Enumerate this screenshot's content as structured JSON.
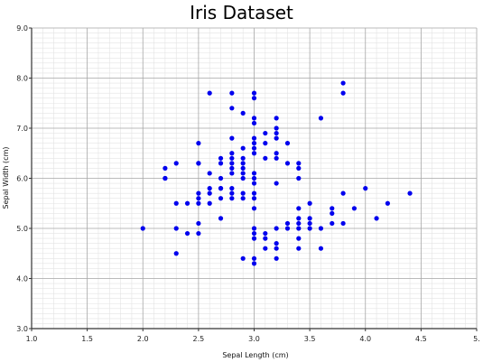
{
  "chart_data": {
    "type": "scatter",
    "title": "Iris Dataset",
    "xlabel": "Sepal Length (cm)",
    "ylabel": "Sepal Width (cm)",
    "xlim": [
      1.0,
      5.0
    ],
    "ylim": [
      3.0,
      9.0
    ],
    "xticks": [
      "1.0",
      "1.5",
      "2.0",
      "2.5",
      "3.0",
      "3.5",
      "4.0",
      "4.5",
      "5."
    ],
    "yticks": [
      "3.0",
      "4.0",
      "5.0",
      "6.0",
      "7.0",
      "8.0",
      "9.0"
    ],
    "grid": true,
    "minor_grid": true,
    "point_color": "#0000ee",
    "points": [
      [
        2.0,
        5.0
      ],
      [
        2.2,
        6.2
      ],
      [
        2.2,
        6.0
      ],
      [
        2.2,
        6.0
      ],
      [
        2.3,
        6.3
      ],
      [
        2.3,
        5.5
      ],
      [
        2.3,
        5.0
      ],
      [
        2.3,
        4.5
      ],
      [
        2.4,
        5.5
      ],
      [
        2.4,
        4.9
      ],
      [
        2.5,
        6.7
      ],
      [
        2.5,
        6.3
      ],
      [
        2.5,
        6.3
      ],
      [
        2.5,
        5.7
      ],
      [
        2.5,
        5.6
      ],
      [
        2.5,
        5.5
      ],
      [
        2.5,
        5.1
      ],
      [
        2.5,
        4.9
      ],
      [
        2.6,
        7.7
      ],
      [
        2.6,
        6.1
      ],
      [
        2.6,
        5.8
      ],
      [
        2.6,
        5.7
      ],
      [
        2.6,
        5.5
      ],
      [
        2.7,
        6.4
      ],
      [
        2.7,
        6.3
      ],
      [
        2.7,
        6.0
      ],
      [
        2.7,
        5.8
      ],
      [
        2.7,
        5.8
      ],
      [
        2.7,
        5.6
      ],
      [
        2.7,
        5.2
      ],
      [
        2.8,
        7.7
      ],
      [
        2.8,
        7.4
      ],
      [
        2.8,
        6.8
      ],
      [
        2.8,
        6.5
      ],
      [
        2.8,
        6.4
      ],
      [
        2.8,
        6.3
      ],
      [
        2.8,
        6.2
      ],
      [
        2.8,
        6.1
      ],
      [
        2.8,
        5.8
      ],
      [
        2.8,
        5.7
      ],
      [
        2.8,
        5.6
      ],
      [
        2.9,
        7.3
      ],
      [
        2.9,
        6.6
      ],
      [
        2.9,
        6.4
      ],
      [
        2.9,
        6.3
      ],
      [
        2.9,
        6.2
      ],
      [
        2.9,
        6.1
      ],
      [
        2.9,
        6.0
      ],
      [
        2.9,
        5.7
      ],
      [
        2.9,
        5.6
      ],
      [
        2.9,
        4.4
      ],
      [
        3.0,
        7.7
      ],
      [
        3.0,
        7.6
      ],
      [
        3.0,
        7.2
      ],
      [
        3.0,
        7.1
      ],
      [
        3.0,
        6.8
      ],
      [
        3.0,
        6.7
      ],
      [
        3.0,
        6.6
      ],
      [
        3.0,
        6.5
      ],
      [
        3.0,
        6.1
      ],
      [
        3.0,
        6.0
      ],
      [
        3.0,
        5.9
      ],
      [
        3.0,
        5.7
      ],
      [
        3.0,
        5.6
      ],
      [
        3.0,
        5.4
      ],
      [
        3.0,
        5.0
      ],
      [
        3.0,
        4.9
      ],
      [
        3.0,
        4.8
      ],
      [
        3.0,
        4.4
      ],
      [
        3.0,
        4.3
      ],
      [
        3.1,
        6.9
      ],
      [
        3.1,
        6.7
      ],
      [
        3.1,
        6.4
      ],
      [
        3.1,
        4.9
      ],
      [
        3.1,
        4.8
      ],
      [
        3.1,
        4.6
      ],
      [
        3.2,
        7.2
      ],
      [
        3.2,
        7.0
      ],
      [
        3.2,
        6.9
      ],
      [
        3.2,
        6.8
      ],
      [
        3.2,
        6.5
      ],
      [
        3.2,
        6.4
      ],
      [
        3.2,
        5.9
      ],
      [
        3.2,
        5.0
      ],
      [
        3.2,
        4.7
      ],
      [
        3.2,
        4.6
      ],
      [
        3.2,
        4.4
      ],
      [
        3.3,
        6.7
      ],
      [
        3.3,
        6.3
      ],
      [
        3.3,
        5.1
      ],
      [
        3.3,
        5.0
      ],
      [
        3.4,
        6.3
      ],
      [
        3.4,
        6.2
      ],
      [
        3.4,
        6.0
      ],
      [
        3.4,
        5.4
      ],
      [
        3.4,
        5.2
      ],
      [
        3.4,
        5.1
      ],
      [
        3.4,
        5.0
      ],
      [
        3.4,
        4.8
      ],
      [
        3.4,
        4.6
      ],
      [
        3.5,
        5.5
      ],
      [
        3.5,
        5.2
      ],
      [
        3.5,
        5.1
      ],
      [
        3.5,
        5.0
      ],
      [
        3.6,
        7.2
      ],
      [
        3.6,
        5.0
      ],
      [
        3.6,
        4.6
      ],
      [
        3.7,
        5.4
      ],
      [
        3.7,
        5.3
      ],
      [
        3.7,
        5.1
      ],
      [
        3.8,
        7.9
      ],
      [
        3.8,
        7.7
      ],
      [
        3.8,
        5.7
      ],
      [
        3.8,
        5.1
      ],
      [
        3.9,
        5.4
      ],
      [
        4.0,
        5.8
      ],
      [
        4.1,
        5.2
      ],
      [
        4.2,
        5.5
      ],
      [
        4.4,
        5.7
      ]
    ]
  }
}
